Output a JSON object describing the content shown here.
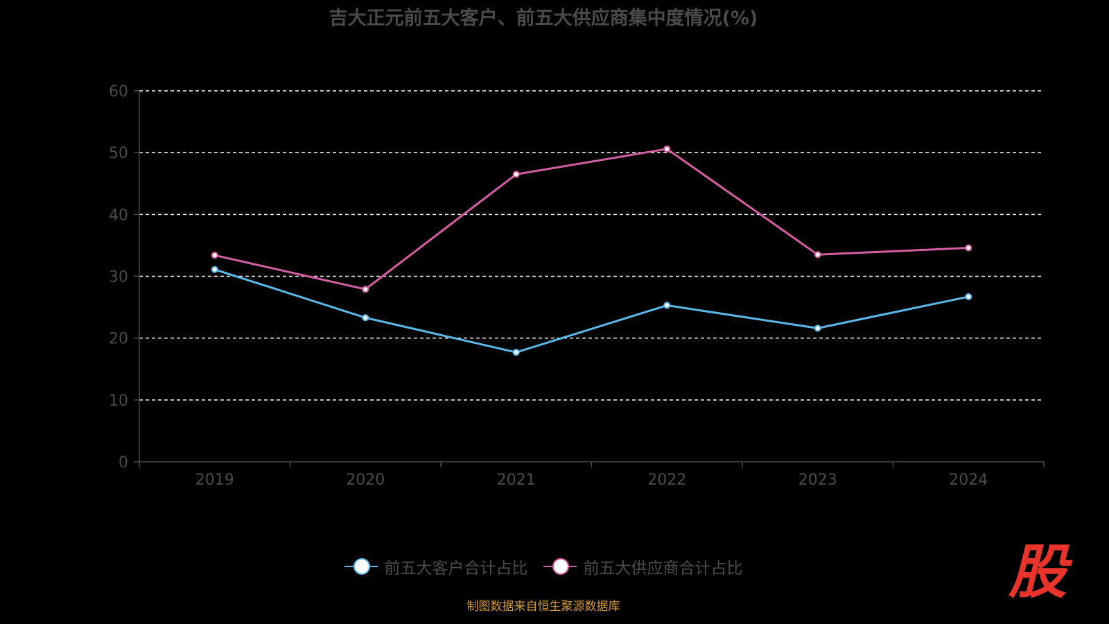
{
  "chart_data": {
    "type": "line",
    "title": "吉大正元前五大客户、前五大供应商集中度情况(%)",
    "categories": [
      "2019",
      "2020",
      "2021",
      "2022",
      "2023",
      "2024"
    ],
    "series": [
      {
        "name": "前五大客户合计占比",
        "values": [
          31.1,
          23.3,
          17.7,
          25.3,
          21.6,
          26.7
        ],
        "color": "#5bb8ea"
      },
      {
        "name": "前五大供应商合计占比",
        "values": [
          33.4,
          27.9,
          46.5,
          50.6,
          33.5,
          34.6
        ],
        "color": "#d55ea4"
      }
    ],
    "ylim": [
      0,
      60
    ],
    "yticks": [
      "0",
      "10",
      "20",
      "30",
      "40",
      "50",
      "60"
    ],
    "grid": true,
    "legend_position": "bottom"
  },
  "footer": {
    "source": "制图数据来自恒生聚源数据库"
  },
  "logo": {
    "text": "股"
  },
  "colors": {
    "background": "#000000",
    "axis": "#4a4a4a",
    "grid": "#ffffff"
  }
}
